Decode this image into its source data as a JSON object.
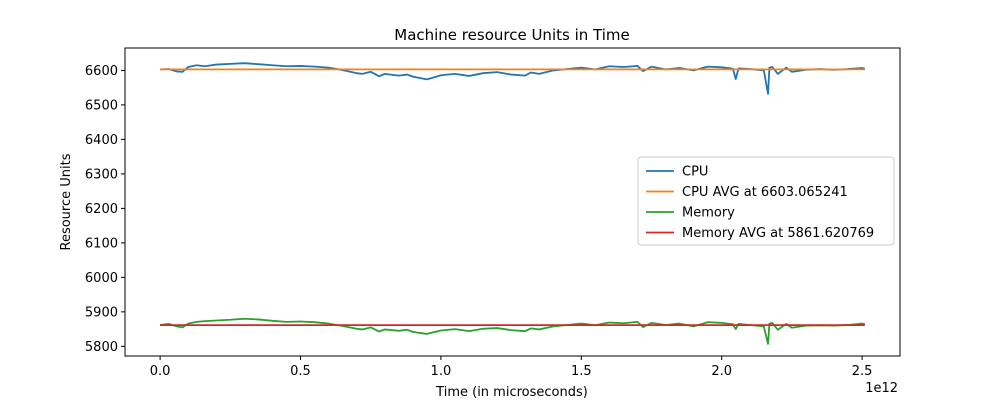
{
  "chart_data": {
    "type": "line",
    "title": "Machine resource Units in Time",
    "xlabel": "Time (in microseconds)",
    "ylabel": "Resource Units",
    "x_offset_text": "1e12",
    "xlim": [
      -0.125,
      2.635
    ],
    "ylim": [
      5772,
      6665
    ],
    "x_ticks": [
      0.0,
      0.5,
      1.0,
      1.5,
      2.0,
      2.5
    ],
    "x_tick_labels": [
      "0.0",
      "0.5",
      "1.0",
      "1.5",
      "2.0",
      "2.5"
    ],
    "y_ticks": [
      5800,
      5900,
      6000,
      6100,
      6200,
      6300,
      6400,
      6500,
      6600
    ],
    "y_tick_labels": [
      "5800",
      "5900",
      "6000",
      "6100",
      "6200",
      "6300",
      "6400",
      "6500",
      "6600"
    ],
    "grid": false,
    "legend_position": "center-right",
    "series": [
      {
        "name": "CPU",
        "color": "#1f77b4",
        "x": [
          0.0,
          0.03,
          0.06,
          0.08,
          0.1,
          0.13,
          0.16,
          0.2,
          0.25,
          0.3,
          0.35,
          0.4,
          0.45,
          0.5,
          0.55,
          0.6,
          0.65,
          0.7,
          0.72,
          0.75,
          0.78,
          0.8,
          0.85,
          0.88,
          0.9,
          0.95,
          0.98,
          1.0,
          1.05,
          1.1,
          1.15,
          1.2,
          1.25,
          1.3,
          1.32,
          1.35,
          1.4,
          1.45,
          1.5,
          1.55,
          1.6,
          1.65,
          1.7,
          1.72,
          1.75,
          1.8,
          1.85,
          1.9,
          1.95,
          2.0,
          2.04,
          2.05,
          2.06,
          2.1,
          2.15,
          2.165,
          2.17,
          2.18,
          2.2,
          2.23,
          2.25,
          2.3,
          2.35,
          2.4,
          2.45,
          2.5,
          2.51
        ],
        "values": [
          6603,
          6604,
          6597,
          6596,
          6610,
          6615,
          6612,
          6617,
          6619,
          6621,
          6618,
          6615,
          6612,
          6613,
          6611,
          6608,
          6601,
          6592,
          6590,
          6596,
          6583,
          6590,
          6585,
          6588,
          6582,
          6574,
          6581,
          6586,
          6590,
          6584,
          6592,
          6595,
          6588,
          6585,
          6594,
          6590,
          6600,
          6604,
          6608,
          6603,
          6612,
          6610,
          6613,
          6598,
          6611,
          6603,
          6607,
          6600,
          6611,
          6609,
          6605,
          6575,
          6606,
          6604,
          6600,
          6532,
          6608,
          6610,
          6590,
          6608,
          6596,
          6602,
          6604,
          6602,
          6604,
          6607,
          6605
        ]
      },
      {
        "name": "CPU AVG at 6603.065241",
        "color": "#ff7f0e",
        "x": [
          0.0,
          2.51
        ],
        "values": [
          6603.065241,
          6603.065241
        ]
      },
      {
        "name": "Memory",
        "color": "#2ca02c",
        "x": [
          0.0,
          0.03,
          0.06,
          0.08,
          0.1,
          0.13,
          0.16,
          0.2,
          0.25,
          0.3,
          0.35,
          0.4,
          0.45,
          0.5,
          0.55,
          0.6,
          0.65,
          0.7,
          0.72,
          0.75,
          0.78,
          0.8,
          0.85,
          0.88,
          0.9,
          0.95,
          0.98,
          1.0,
          1.05,
          1.1,
          1.15,
          1.2,
          1.25,
          1.3,
          1.32,
          1.35,
          1.4,
          1.45,
          1.5,
          1.55,
          1.6,
          1.65,
          1.7,
          1.72,
          1.75,
          1.8,
          1.85,
          1.9,
          1.95,
          2.0,
          2.04,
          2.05,
          2.06,
          2.1,
          2.15,
          2.165,
          2.17,
          2.18,
          2.2,
          2.23,
          2.25,
          2.3,
          2.35,
          2.4,
          2.45,
          2.5,
          2.51
        ],
        "values": [
          5862,
          5865,
          5858,
          5855,
          5866,
          5871,
          5873,
          5875,
          5877,
          5880,
          5878,
          5874,
          5871,
          5872,
          5870,
          5866,
          5859,
          5851,
          5849,
          5855,
          5843,
          5849,
          5845,
          5848,
          5842,
          5836,
          5842,
          5846,
          5850,
          5844,
          5851,
          5853,
          5847,
          5844,
          5852,
          5849,
          5858,
          5862,
          5866,
          5861,
          5869,
          5867,
          5871,
          5856,
          5868,
          5862,
          5866,
          5858,
          5870,
          5868,
          5864,
          5850,
          5865,
          5862,
          5858,
          5807,
          5866,
          5868,
          5848,
          5865,
          5854,
          5860,
          5861,
          5860,
          5862,
          5866,
          5864
        ]
      },
      {
        "name": "Memory AVG at 5861.620769",
        "color": "#d62728",
        "x": [
          0.0,
          2.51
        ],
        "values": [
          5861.620769,
          5861.620769
        ]
      }
    ]
  }
}
